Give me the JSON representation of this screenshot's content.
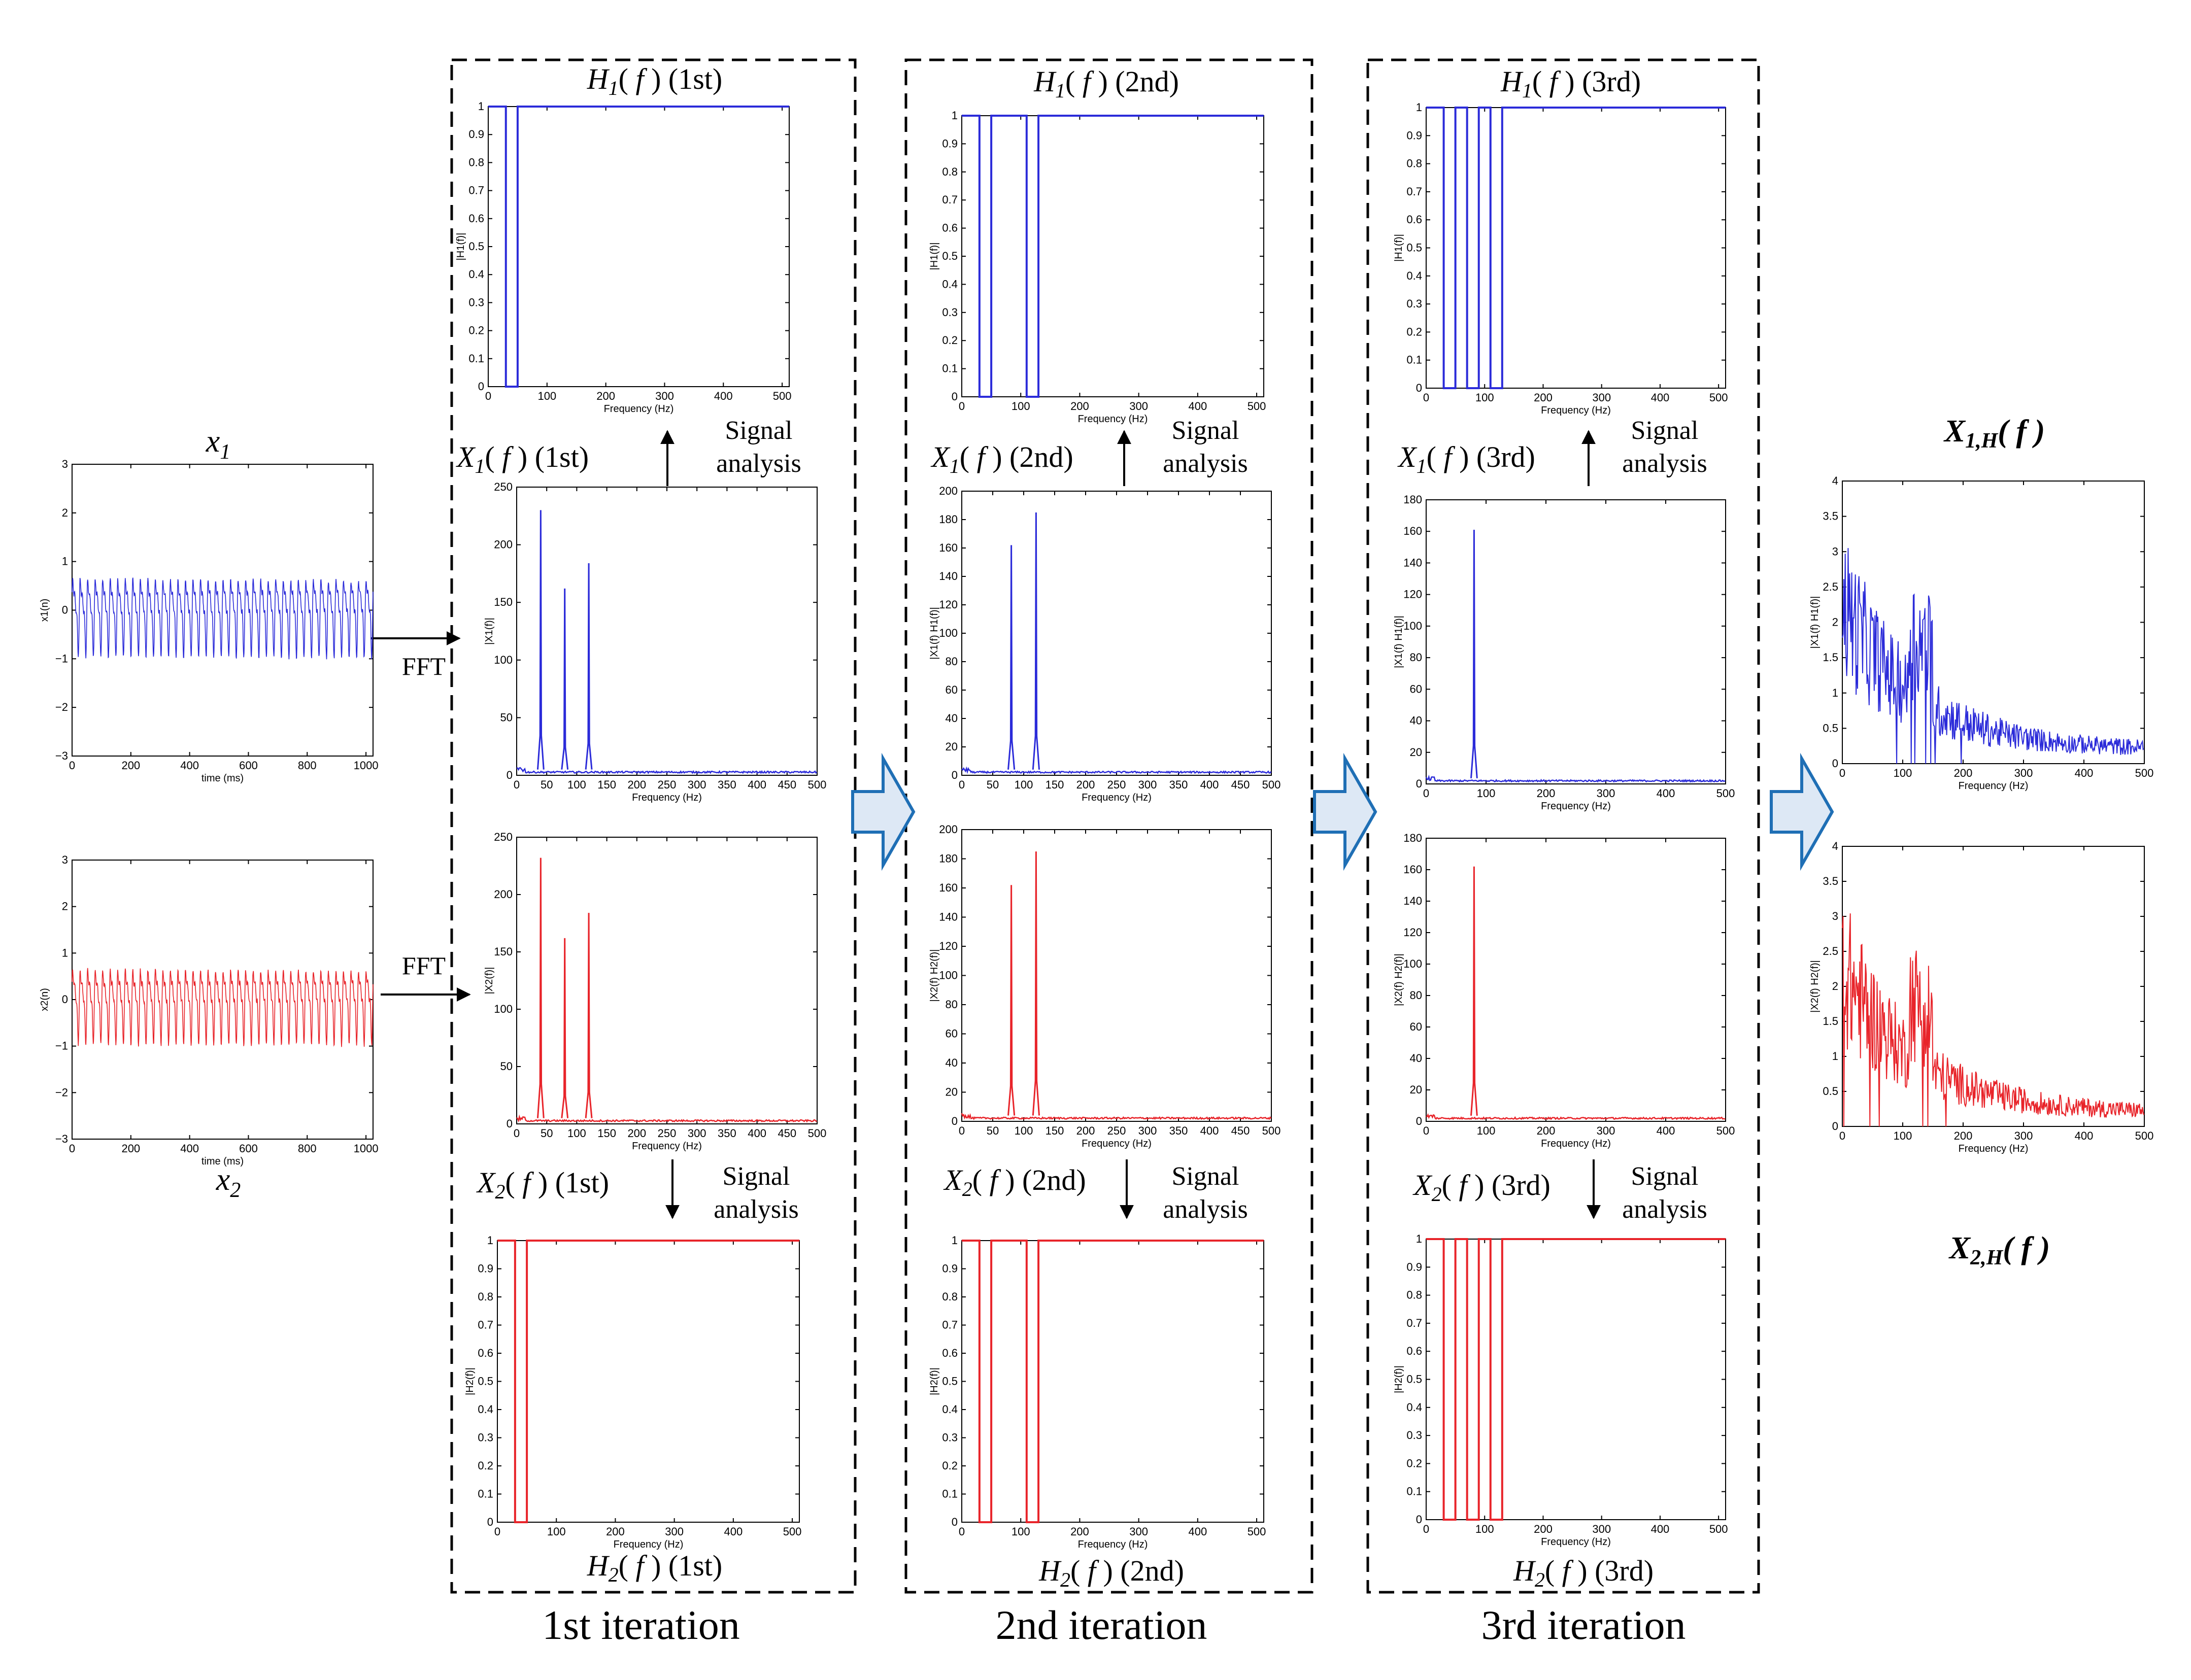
{
  "signals": {
    "x1_label": "x",
    "x1_sub": "1",
    "x2_label": "x",
    "x2_sub": "2",
    "time_xlabel": "time (ms)",
    "x1_ylabel": "x1(n)",
    "x2_ylabel": "x2(n)",
    "time_xticks": [
      "0",
      "200",
      "400",
      "600",
      "800",
      "1000"
    ],
    "time_yticks": [
      "−3",
      "−2",
      "−1",
      "0",
      "1",
      "2",
      "3"
    ]
  },
  "fft_label": "FFT",
  "signal_analysis": [
    "Signal",
    "analysis"
  ],
  "freq_xlabel": "Frequency (Hz)",
  "iterations": [
    {
      "name": "1st iteration",
      "h1_title": "H1(f) (1st)",
      "x1_title": "X1(f) (1st)",
      "x2_title": "X2(f) (1st)",
      "h2_title": "H2(f) (1st)"
    },
    {
      "name": "2nd iteration",
      "h1_title": "H1(f) (2nd)",
      "x1_title": "X1(f) (2nd)",
      "x2_title": "X2(f) (2nd)",
      "h2_title": "H2(f) (2nd)"
    },
    {
      "name": "3rd iteration",
      "h1_title": "H1(f) (3rd)",
      "x1_title": "X1(f) (3rd)",
      "x2_title": "X2(f) (3rd)",
      "h2_title": "H2(f) (3rd)"
    }
  ],
  "results": {
    "x1h_label": "X1,H(f)",
    "x2h_label": "X2,H(f)",
    "x1h_ylabel": "|X1(f) H1(f)|",
    "x2h_ylabel": "|X2(f) H2(f)|"
  },
  "colors": {
    "blue": "#2b2bd9",
    "red": "#e8242a",
    "arrow_fill": "#dde8f5",
    "arrow_stroke": "#1f6fb5"
  },
  "chart_data": [
    {
      "id": "x1_time",
      "type": "line",
      "series": "x1(n)",
      "xlabel": "time (ms)",
      "ylabel": "x1(n)",
      "xlim": [
        0,
        1024
      ],
      "ylim": [
        -3,
        3
      ],
      "xticks": [
        0,
        200,
        400,
        600,
        800,
        1000
      ],
      "yticks": [
        -3,
        -2,
        -1,
        0,
        1,
        2,
        3
      ]
    },
    {
      "id": "x2_time",
      "type": "line",
      "series": "x2(n)",
      "xlabel": "time (ms)",
      "ylabel": "x2(n)",
      "xlim": [
        0,
        1024
      ],
      "ylim": [
        -3,
        3
      ],
      "xticks": [
        0,
        200,
        400,
        600,
        800,
        1000
      ],
      "yticks": [
        -3,
        -2,
        -1,
        0,
        1,
        2,
        3
      ]
    },
    {
      "id": "h1_1",
      "type": "line",
      "title": "H1(f) (1st)",
      "ylabel": "|H1(f)|",
      "xlabel": "Frequency (Hz)",
      "xlim": [
        0,
        512
      ],
      "ylim": [
        0,
        1
      ],
      "xticks": [
        0,
        100,
        200,
        300,
        400,
        500
      ],
      "yticks": [
        0,
        0.1,
        0.2,
        0.3,
        0.4,
        0.5,
        0.6,
        0.7,
        0.8,
        0.9,
        1
      ],
      "notches": [
        [
          30,
          50
        ]
      ]
    },
    {
      "id": "x1_1",
      "type": "line",
      "title": "X1(f) (1st)",
      "ylabel": "|X1(f)|",
      "xlabel": "Frequency (Hz)",
      "xlim": [
        0,
        500
      ],
      "ylim": [
        0,
        250
      ],
      "xticks": [
        0,
        50,
        100,
        150,
        200,
        250,
        300,
        350,
        400,
        450,
        500
      ],
      "yticks": [
        0,
        50,
        100,
        150,
        200,
        250
      ],
      "peaks": [
        [
          40,
          230
        ],
        [
          80,
          162
        ],
        [
          120,
          184
        ]
      ]
    },
    {
      "id": "x2_1",
      "type": "line",
      "title": "X2(f) (1st)",
      "ylabel": "|X2(f)|",
      "xlabel": "Frequency (Hz)",
      "xlim": [
        0,
        500
      ],
      "ylim": [
        0,
        250
      ],
      "xticks": [
        0,
        50,
        100,
        150,
        200,
        250,
        300,
        350,
        400,
        450,
        500
      ],
      "yticks": [
        0,
        50,
        100,
        150,
        200,
        250
      ],
      "peaks": [
        [
          40,
          232
        ],
        [
          80,
          162
        ],
        [
          120,
          184
        ]
      ]
    },
    {
      "id": "h2_1",
      "type": "line",
      "title": "H2(f) (1st)",
      "ylabel": "|H2(f)|",
      "xlabel": "Frequency (Hz)",
      "xlim": [
        0,
        512
      ],
      "ylim": [
        0,
        1
      ],
      "xticks": [
        0,
        100,
        200,
        300,
        400,
        500
      ],
      "yticks": [
        0,
        0.1,
        0.2,
        0.3,
        0.4,
        0.5,
        0.6,
        0.7,
        0.8,
        0.9,
        1
      ],
      "notches": [
        [
          30,
          50
        ]
      ]
    },
    {
      "id": "h1_2",
      "type": "line",
      "title": "H1(f) (2nd)",
      "ylabel": "|H1(f)|",
      "xlabel": "Frequency (Hz)",
      "xlim": [
        0,
        512
      ],
      "ylim": [
        0,
        1
      ],
      "xticks": [
        0,
        100,
        200,
        300,
        400,
        500
      ],
      "yticks": [
        0,
        0.1,
        0.2,
        0.3,
        0.4,
        0.5,
        0.6,
        0.7,
        0.8,
        0.9,
        1
      ],
      "notches": [
        [
          30,
          50
        ],
        [
          110,
          130
        ]
      ]
    },
    {
      "id": "x1_2",
      "type": "line",
      "title": "X1(f) (2nd)",
      "ylabel": "|X1(f) H1(f)|",
      "xlabel": "Frequency (Hz)",
      "xlim": [
        0,
        500
      ],
      "ylim": [
        0,
        200
      ],
      "xticks": [
        0,
        50,
        100,
        150,
        200,
        250,
        300,
        350,
        400,
        450,
        500
      ],
      "yticks": [
        0,
        20,
        40,
        60,
        80,
        100,
        120,
        140,
        160,
        180,
        200
      ],
      "peaks": [
        [
          80,
          162
        ],
        [
          120,
          185
        ]
      ]
    },
    {
      "id": "x2_2",
      "type": "line",
      "title": "X2(f) (2nd)",
      "ylabel": "|X2(f) H2(f)|",
      "xlabel": "Frequency (Hz)",
      "xlim": [
        0,
        500
      ],
      "ylim": [
        0,
        200
      ],
      "xticks": [
        0,
        50,
        100,
        150,
        200,
        250,
        300,
        350,
        400,
        450,
        500
      ],
      "yticks": [
        0,
        20,
        40,
        60,
        80,
        100,
        120,
        140,
        160,
        180,
        200
      ],
      "peaks": [
        [
          80,
          162
        ],
        [
          120,
          185
        ]
      ]
    },
    {
      "id": "h2_2",
      "type": "line",
      "title": "H2(f) (2nd)",
      "ylabel": "|H2(f)|",
      "xlabel": "Frequency (Hz)",
      "xlim": [
        0,
        512
      ],
      "ylim": [
        0,
        1
      ],
      "xticks": [
        0,
        100,
        200,
        300,
        400,
        500
      ],
      "yticks": [
        0,
        0.1,
        0.2,
        0.3,
        0.4,
        0.5,
        0.6,
        0.7,
        0.8,
        0.9,
        1
      ],
      "notches": [
        [
          30,
          50
        ],
        [
          110,
          130
        ]
      ]
    },
    {
      "id": "h1_3",
      "type": "line",
      "title": "H1(f) (3rd)",
      "ylabel": "|H1(f)|",
      "xlabel": "Frequency (Hz)",
      "xlim": [
        0,
        512
      ],
      "ylim": [
        0,
        1
      ],
      "xticks": [
        0,
        100,
        200,
        300,
        400,
        500
      ],
      "yticks": [
        0,
        0.1,
        0.2,
        0.3,
        0.4,
        0.5,
        0.6,
        0.7,
        0.8,
        0.9,
        1
      ],
      "notches": [
        [
          30,
          50
        ],
        [
          70,
          90
        ],
        [
          110,
          130
        ]
      ]
    },
    {
      "id": "x1_3",
      "type": "line",
      "title": "X1(f) (3rd)",
      "ylabel": "|X1(f) H1(f)|",
      "xlabel": "Frequency (Hz)",
      "xlim": [
        0,
        500
      ],
      "ylim": [
        0,
        180
      ],
      "xticks": [
        0,
        100,
        200,
        300,
        400,
        500
      ],
      "yticks": [
        0,
        20,
        40,
        60,
        80,
        100,
        120,
        140,
        160,
        180
      ],
      "peaks": [
        [
          80,
          161
        ]
      ]
    },
    {
      "id": "x2_3",
      "type": "line",
      "title": "X2(f) (3rd)",
      "ylabel": "|X2(f) H2(f)|",
      "xlabel": "Frequency (Hz)",
      "xlim": [
        0,
        500
      ],
      "ylim": [
        0,
        180
      ],
      "xticks": [
        0,
        100,
        200,
        300,
        400,
        500
      ],
      "yticks": [
        0,
        20,
        40,
        60,
        80,
        100,
        120,
        140,
        160,
        180
      ],
      "peaks": [
        [
          80,
          162
        ]
      ]
    },
    {
      "id": "h2_3",
      "type": "line",
      "title": "H2(f) (3rd)",
      "ylabel": "|H2(f)|",
      "xlabel": "Frequency (Hz)",
      "xlim": [
        0,
        512
      ],
      "ylim": [
        0,
        1
      ],
      "xticks": [
        0,
        100,
        200,
        300,
        400,
        500
      ],
      "yticks": [
        0,
        0.1,
        0.2,
        0.3,
        0.4,
        0.5,
        0.6,
        0.7,
        0.8,
        0.9,
        1
      ],
      "notches": [
        [
          30,
          50
        ],
        [
          70,
          90
        ],
        [
          110,
          130
        ]
      ]
    },
    {
      "id": "x1h",
      "type": "line",
      "title": "X1,H(f)",
      "ylabel": "|X1(f) H1(f)|",
      "xlabel": "Frequency (Hz)",
      "xlim": [
        0,
        500
      ],
      "ylim": [
        0,
        4
      ],
      "xticks": [
        0,
        100,
        200,
        300,
        400,
        500
      ],
      "yticks": [
        0,
        0.5,
        1,
        1.5,
        2,
        2.5,
        3,
        3.5,
        4
      ]
    },
    {
      "id": "x2h",
      "type": "line",
      "title": "X2,H(f)",
      "ylabel": "|X2(f) H2(f)|",
      "xlabel": "Frequency (Hz)",
      "xlim": [
        0,
        500
      ],
      "ylim": [
        0,
        4
      ],
      "xticks": [
        0,
        100,
        200,
        300,
        400,
        500
      ],
      "yticks": [
        0,
        0.5,
        1,
        1.5,
        2,
        2.5,
        3,
        3.5,
        4
      ]
    }
  ]
}
